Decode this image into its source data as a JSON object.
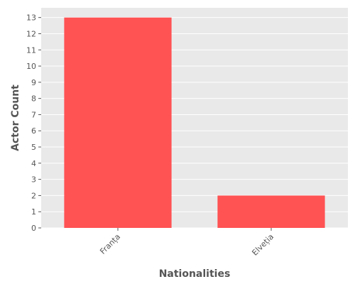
{
  "chart_data": {
    "type": "bar",
    "title": "",
    "xlabel": "Nationalities",
    "ylabel": "Actor Count",
    "categories": [
      "Franța",
      "Elveția"
    ],
    "values": [
      13,
      2
    ],
    "ylim": [
      0,
      13.6
    ],
    "yticks": [
      0,
      1,
      2,
      3,
      4,
      5,
      6,
      7,
      8,
      9,
      10,
      11,
      12,
      13
    ],
    "grid": true,
    "legend": "none",
    "colors": {
      "bar": "#FF5253",
      "panel_background": "#E9E9E9",
      "grid": "#FFFFFF",
      "text": "#555555"
    }
  }
}
